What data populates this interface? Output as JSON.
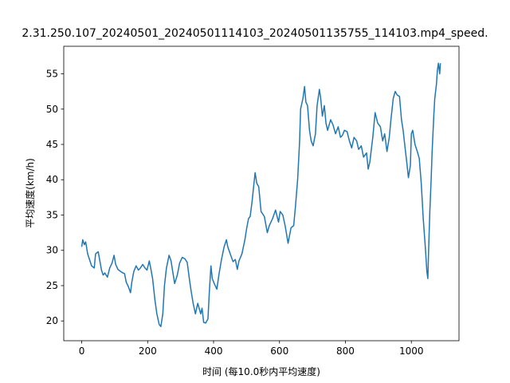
{
  "chart_data": {
    "type": "line",
    "title": "2.31.250.107_20240501_20240501114103_20240501135755_114103.mp4_speed.",
    "x_label": "时间 (每10.0秒内平均速度)",
    "y_label": "平均速度(km/h)",
    "xlim": [
      -54.5,
      1144.5
    ],
    "ylim": [
      17.2,
      58.9
    ],
    "xticks": [
      0,
      200,
      400,
      600,
      800,
      1000
    ],
    "yticks": [
      20,
      25,
      30,
      35,
      40,
      45,
      50,
      55
    ],
    "series": [
      {
        "name": "speed",
        "color": "#1f77b4",
        "x": [
          0,
          3,
          8,
          12,
          18,
          25,
          30,
          38,
          42,
          50,
          55,
          60,
          65,
          70,
          78,
          85,
          92,
          98,
          103,
          110,
          118,
          125,
          130,
          135,
          142,
          148,
          152,
          158,
          165,
          172,
          178,
          185,
          192,
          198,
          205,
          210,
          215,
          222,
          228,
          235,
          240,
          246,
          251,
          257,
          265,
          271,
          276,
          282,
          290,
          297,
          305,
          313,
          320,
          327,
          332,
          338,
          345,
          352,
          361,
          365,
          370,
          376,
          383,
          387,
          392,
          396,
          402,
          410,
          416,
          424,
          432,
          439,
          443,
          452,
          459,
          466,
          472,
          477,
          486,
          495,
          500,
          506,
          511,
          517,
          521,
          526,
          531,
          537,
          544,
          554,
          563,
          569,
          579,
          588,
          597,
          602,
          610,
          617,
          626,
          635,
          643,
          648,
          655,
          661,
          664,
          671,
          676,
          680,
          685,
          691,
          696,
          702,
          709,
          714,
          721,
          725,
          730,
          736,
          741,
          746,
          755,
          762,
          770,
          778,
          785,
          791,
          797,
          805,
          812,
          819,
          826,
          834,
          840,
          848,
          855,
          864,
          869,
          874,
          883,
          890,
          898,
          906,
          913,
          919,
          926,
          933,
          938,
          945,
          951,
          957,
          964,
          970,
          975,
          981,
          986,
          991,
          997,
          1000,
          1004,
          1011,
          1018,
          1024,
          1030,
          1036,
          1043,
          1047,
          1050,
          1052,
          1056,
          1060,
          1063,
          1068,
          1071,
          1076,
          1079,
          1082,
          1086,
          1088
        ],
        "values": [
          30.5,
          31.5,
          30.8,
          31.2,
          29.5,
          28.5,
          27.8,
          27.5,
          29.5,
          29.8,
          28.5,
          27.2,
          26.5,
          26.8,
          26.2,
          27.5,
          28.2,
          29.3,
          28.0,
          27.3,
          27.0,
          26.8,
          26.7,
          25.5,
          24.8,
          24.0,
          25.5,
          27.0,
          27.8,
          27.2,
          27.5,
          28.0,
          27.5,
          27.2,
          28.5,
          27.3,
          26.0,
          23.0,
          21.0,
          19.5,
          19.2,
          21.0,
          25.0,
          27.5,
          29.3,
          28.5,
          27.0,
          25.3,
          26.5,
          28.2,
          29.0,
          28.8,
          28.3,
          25.8,
          24.2,
          22.5,
          21.0,
          22.5,
          21.0,
          21.8,
          19.8,
          19.7,
          20.3,
          24.0,
          27.8,
          26.0,
          25.3,
          24.5,
          26.5,
          28.7,
          30.5,
          31.5,
          30.5,
          29.3,
          28.4,
          28.7,
          27.3,
          28.5,
          29.5,
          31.5,
          33.0,
          34.5,
          34.8,
          37.0,
          38.8,
          41.0,
          39.5,
          39.0,
          35.5,
          34.8,
          32.5,
          33.5,
          34.5,
          35.7,
          34.0,
          35.5,
          35.0,
          33.5,
          31.0,
          33.2,
          33.5,
          36.0,
          40.0,
          45.5,
          50.0,
          51.5,
          53.2,
          51.0,
          50.5,
          47.0,
          45.5,
          44.8,
          46.5,
          50.5,
          52.8,
          51.5,
          49.0,
          50.5,
          48.0,
          47.0,
          48.5,
          47.8,
          46.5,
          47.5,
          46.0,
          46.3,
          47.0,
          46.8,
          45.5,
          44.5,
          46.0,
          45.5,
          44.3,
          44.8,
          43.2,
          43.8,
          41.5,
          42.5,
          46.0,
          49.5,
          48.0,
          47.5,
          45.5,
          46.5,
          44.0,
          46.0,
          48.5,
          51.5,
          52.5,
          52.0,
          51.8,
          48.5,
          47.0,
          44.5,
          42.5,
          40.3,
          42.0,
          46.5,
          47.0,
          45.0,
          44.0,
          43.0,
          39.5,
          34.5,
          30.0,
          27.0,
          26.0,
          29.5,
          35.5,
          40.0,
          44.0,
          49.0,
          51.5,
          53.5,
          55.5,
          56.5,
          55.0,
          56.5
        ]
      }
    ]
  }
}
